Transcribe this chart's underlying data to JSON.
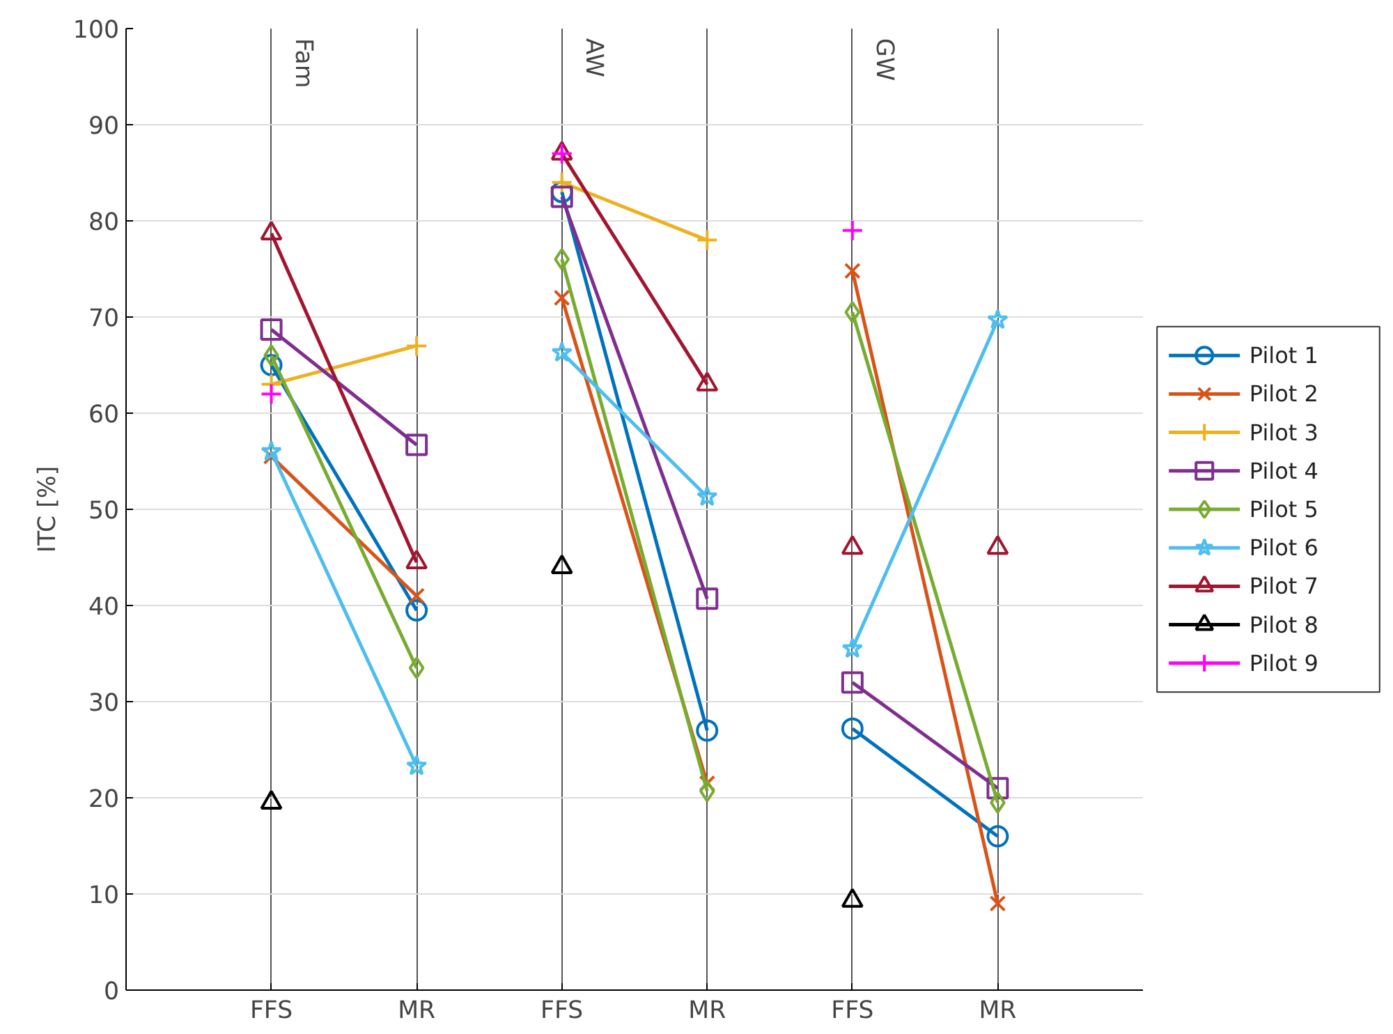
{
  "chart_data": {
    "type": "line",
    "ylabel": "ITC [%]",
    "categories": [
      "FFS",
      "MR",
      "FFS",
      "MR",
      "FFS",
      "MR"
    ],
    "annotations": [
      "Fam",
      "AW",
      "GW"
    ],
    "ylim": [
      0,
      100
    ],
    "yticks": [
      0,
      10,
      20,
      30,
      40,
      50,
      60,
      70,
      80,
      90,
      100
    ],
    "grid": true,
    "legend": "right",
    "series": [
      {
        "name": "Pilot 1",
        "color": "#0072bd",
        "marker": "circle",
        "values": [
          65,
          39.5,
          83,
          27,
          27.2,
          16
        ]
      },
      {
        "name": "Pilot 2",
        "color": "#d95319",
        "marker": "x",
        "values": [
          55.5,
          41,
          72,
          21.5,
          74.8,
          9
        ]
      },
      {
        "name": "Pilot 3",
        "color": "#edb120",
        "marker": "cross",
        "values": [
          63,
          67,
          84,
          78,
          null,
          null
        ]
      },
      {
        "name": "Pilot 4",
        "color": "#7e2f8e",
        "marker": "square",
        "values": [
          68.7,
          56.7,
          82.5,
          40.7,
          32,
          21
        ]
      },
      {
        "name": "Pilot 5",
        "color": "#77ac30",
        "marker": "diamond",
        "values": [
          66,
          33.5,
          76,
          20.7,
          70.5,
          19.5
        ]
      },
      {
        "name": "Pilot 6",
        "color": "#4dbeee",
        "marker": "star",
        "values": [
          56,
          23.3,
          66.3,
          51.3,
          35.5,
          69.7
        ]
      },
      {
        "name": "Pilot 7",
        "color": "#a2142f",
        "marker": "triangle",
        "values": [
          78.7,
          44.5,
          87,
          63,
          null,
          null
        ]
      },
      {
        "type": "scatter",
        "color": "#a2142f",
        "marker": "triangle",
        "values": [
          null,
          null,
          null,
          null,
          46,
          46
        ]
      },
      {
        "name": "Pilot 8",
        "type": "scatter",
        "color": "#000000",
        "marker": "triangle",
        "values": [
          19.5,
          null,
          44,
          null,
          9.3,
          null
        ]
      },
      {
        "name": "Pilot 9",
        "type": "scatter",
        "color": "#ff00ff",
        "marker": "cross",
        "values": [
          62,
          null,
          87,
          null,
          79,
          null
        ]
      }
    ]
  }
}
